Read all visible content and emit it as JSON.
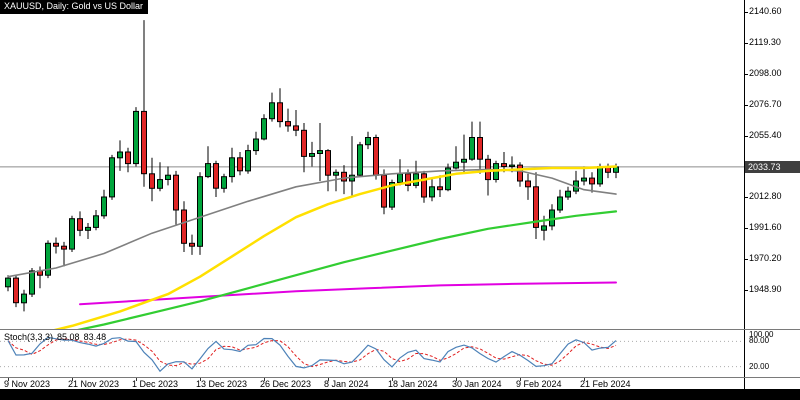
{
  "header": {
    "symbol_label": "XAUUSD, Daily: Gold vs US Dollar"
  },
  "stoch_panel": {
    "label": "Stoch(3,3,3)",
    "value_k": "85.08",
    "value_d": "83.48"
  },
  "colors": {
    "candle_up": "#00A53C",
    "candle_down": "#E02626",
    "price_line": "#8C8C8C",
    "badge_bg": "#3F3F3F",
    "stoch_k": "#4D82B8",
    "stoch_d": "#E02020",
    "stoch_level": "#ADADAD",
    "header_bg": "#000000"
  },
  "chart_data": {
    "type": "candlestick",
    "title": "XAUUSD, Daily: Gold vs US Dollar",
    "symbol": "XAUUSD",
    "timeframe": "Daily",
    "ylim": [
      1921.2,
      2148.9
    ],
    "current_price": "2033.73",
    "y_tick_labels": [
      "2140.60",
      "2119.30",
      "2098.00",
      "2076.70",
      "2055.40",
      "2012.80",
      "1991.60",
      "1970.20",
      "1948.90"
    ],
    "x_tick_labels": [
      {
        "text": "9 Nov 2023",
        "bar": 0
      },
      {
        "text": "21 Nov 2023",
        "bar": 8
      },
      {
        "text": "1 Dec 2023",
        "bar": 16
      },
      {
        "text": "13 Dec 2023",
        "bar": 24
      },
      {
        "text": "26 Dec 2023",
        "bar": 32
      },
      {
        "text": "8 Jan 2024",
        "bar": 40
      },
      {
        "text": "18 Jan 2024",
        "bar": 48
      },
      {
        "text": "30 Jan 2024",
        "bar": 56
      },
      {
        "text": "9 Feb 2024",
        "bar": 64
      },
      {
        "text": "21 Feb 2024",
        "bar": 72
      }
    ],
    "candles": [
      [
        1951,
        1959,
        1948,
        1957
      ],
      [
        1957,
        1959,
        1937,
        1940
      ],
      [
        1940,
        1949,
        1934,
        1946
      ],
      [
        1946,
        1964,
        1944,
        1962
      ],
      [
        1962,
        1965,
        1950,
        1959
      ],
      [
        1959,
        1983,
        1957,
        1981
      ],
      [
        1981,
        1985,
        1974,
        1979
      ],
      [
        1979,
        1982,
        1965,
        1977
      ],
      [
        1977,
        2000,
        1975,
        1998
      ],
      [
        1998,
        2003,
        1986,
        1990
      ],
      [
        1990,
        1995,
        1984,
        1992
      ],
      [
        1992,
        2004,
        1990,
        2000
      ],
      [
        2000,
        2018,
        1998,
        2013
      ],
      [
        2013,
        2042,
        2011,
        2040
      ],
      [
        2040,
        2052,
        2031,
        2044
      ],
      [
        2044,
        2047,
        2030,
        2036
      ],
      [
        2036,
        2075,
        2034,
        2072
      ],
      [
        2072,
        2135,
        2020,
        2029
      ],
      [
        2029,
        2040,
        2010,
        2019
      ],
      [
        2019,
        2037,
        2017,
        2025
      ],
      [
        2025,
        2034,
        2021,
        2028
      ],
      [
        2028,
        2031,
        1994,
        2004
      ],
      [
        2004,
        2010,
        1975,
        1981
      ],
      [
        1981,
        1987,
        1973,
        1979
      ],
      [
        1979,
        2030,
        1973,
        2027
      ],
      [
        2027,
        2048,
        2026,
        2036
      ],
      [
        2036,
        2038,
        2013,
        2019
      ],
      [
        2019,
        2029,
        2016,
        2027
      ],
      [
        2027,
        2047,
        2023,
        2040
      ],
      [
        2040,
        2044,
        2028,
        2031
      ],
      [
        2031,
        2049,
        2029,
        2045
      ],
      [
        2045,
        2058,
        2042,
        2053
      ],
      [
        2053,
        2070,
        2052,
        2067
      ],
      [
        2067,
        2085,
        2065,
        2078
      ],
      [
        2078,
        2088,
        2061,
        2065
      ],
      [
        2065,
        2074,
        2058,
        2062
      ],
      [
        2062,
        2073,
        2055,
        2059
      ],
      [
        2059,
        2064,
        2030,
        2041
      ],
      [
        2041,
        2051,
        2034,
        2043
      ],
      [
        2043,
        2064,
        2024,
        2045
      ],
      [
        2045,
        2046,
        2017,
        2028
      ],
      [
        2028,
        2032,
        2017,
        2030
      ],
      [
        2030,
        2035,
        2015,
        2024
      ],
      [
        2024,
        2055,
        2013,
        2028
      ],
      [
        2028,
        2051,
        2027,
        2049
      ],
      [
        2049,
        2058,
        2046,
        2054
      ],
      [
        2054,
        2056,
        2025,
        2028
      ],
      [
        2028,
        2032,
        2001,
        2006
      ],
      [
        2006,
        2025,
        2004,
        2023
      ],
      [
        2023,
        2039,
        2021,
        2029
      ],
      [
        2029,
        2032,
        2017,
        2021
      ],
      [
        2021,
        2038,
        2019,
        2029
      ],
      [
        2029,
        2031,
        2009,
        2013
      ],
      [
        2013,
        2026,
        2010,
        2020
      ],
      [
        2020,
        2028,
        2013,
        2018
      ],
      [
        2018,
        2036,
        2017,
        2033
      ],
      [
        2033,
        2048,
        2032,
        2037
      ],
      [
        2037,
        2056,
        2030,
        2039
      ],
      [
        2039,
        2065,
        2038,
        2054
      ],
      [
        2054,
        2065,
        2029,
        2039
      ],
      [
        2039,
        2042,
        2014,
        2025
      ],
      [
        2025,
        2038,
        2023,
        2036
      ],
      [
        2036,
        2044,
        2030,
        2034
      ],
      [
        2034,
        2041,
        2030,
        2035
      ],
      [
        2035,
        2037,
        2020,
        2024
      ],
      [
        2024,
        2029,
        2011,
        2020
      ],
      [
        2020,
        2030,
        1984,
        1992
      ],
      [
        1990,
        2000,
        1983,
        1993
      ],
      [
        1993,
        2008,
        1990,
        2004
      ],
      [
        2004,
        2018,
        2002,
        2013
      ],
      [
        2013,
        2020,
        2011,
        2017
      ],
      [
        2017,
        2031,
        2015,
        2024
      ],
      [
        2024,
        2034,
        2021,
        2026
      ],
      [
        2026,
        2030,
        2016,
        2022
      ],
      [
        2022,
        2036,
        2020,
        2034
      ],
      [
        2034,
        2036,
        2026,
        2030
      ],
      [
        2030,
        2036,
        2026,
        2033.73
      ]
    ],
    "overlays": [
      {
        "name": "ma-gray",
        "color": "#808080",
        "width": 1.6,
        "points": [
          [
            0,
            1958
          ],
          [
            6,
            1964
          ],
          [
            12,
            1974
          ],
          [
            18,
            1988
          ],
          [
            24,
            1999
          ],
          [
            30,
            2010
          ],
          [
            36,
            2020
          ],
          [
            42,
            2026
          ],
          [
            48,
            2029
          ],
          [
            54,
            2031
          ],
          [
            60,
            2032
          ],
          [
            64,
            2031
          ],
          [
            68,
            2026
          ],
          [
            72,
            2018
          ],
          [
            76,
            2015
          ]
        ]
      },
      {
        "name": "ma-magenta",
        "color": "#E100E1",
        "width": 2,
        "points": [
          [
            9,
            1939
          ],
          [
            18,
            1942
          ],
          [
            27,
            1945
          ],
          [
            36,
            1948
          ],
          [
            45,
            1950
          ],
          [
            54,
            1952
          ],
          [
            63,
            1953
          ],
          [
            76,
            1954
          ]
        ]
      },
      {
        "name": "ma-green",
        "color": "#32CD32",
        "width": 2.2,
        "points": [
          [
            6,
            1918
          ],
          [
            12,
            1925
          ],
          [
            18,
            1933
          ],
          [
            24,
            1941
          ],
          [
            30,
            1950
          ],
          [
            36,
            1959
          ],
          [
            42,
            1968
          ],
          [
            48,
            1976
          ],
          [
            54,
            1984
          ],
          [
            60,
            1991
          ],
          [
            66,
            1996
          ],
          [
            71,
            2000
          ],
          [
            76,
            2003
          ]
        ]
      },
      {
        "name": "ma-yellow",
        "color": "#FFE000",
        "width": 2.5,
        "points": [
          [
            2,
            1916
          ],
          [
            8,
            1924
          ],
          [
            14,
            1934
          ],
          [
            20,
            1946
          ],
          [
            24,
            1958
          ],
          [
            28,
            1972
          ],
          [
            32,
            1986
          ],
          [
            36,
            1999
          ],
          [
            40,
            2008
          ],
          [
            44,
            2015
          ],
          [
            48,
            2021
          ],
          [
            52,
            2025
          ],
          [
            56,
            2029
          ],
          [
            60,
            2031
          ],
          [
            64,
            2032
          ],
          [
            68,
            2033
          ],
          [
            72,
            2033
          ],
          [
            76,
            2034
          ]
        ]
      }
    ],
    "indicator_panel": {
      "type": "stochastic",
      "label": "Stoch(3,3,3)",
      "k": 85.08,
      "d": 83.48,
      "range": [
        0,
        100
      ],
      "levels": [
        80,
        20
      ],
      "level_labels": [
        "100.00",
        "80.00",
        "20.00"
      ]
    }
  }
}
